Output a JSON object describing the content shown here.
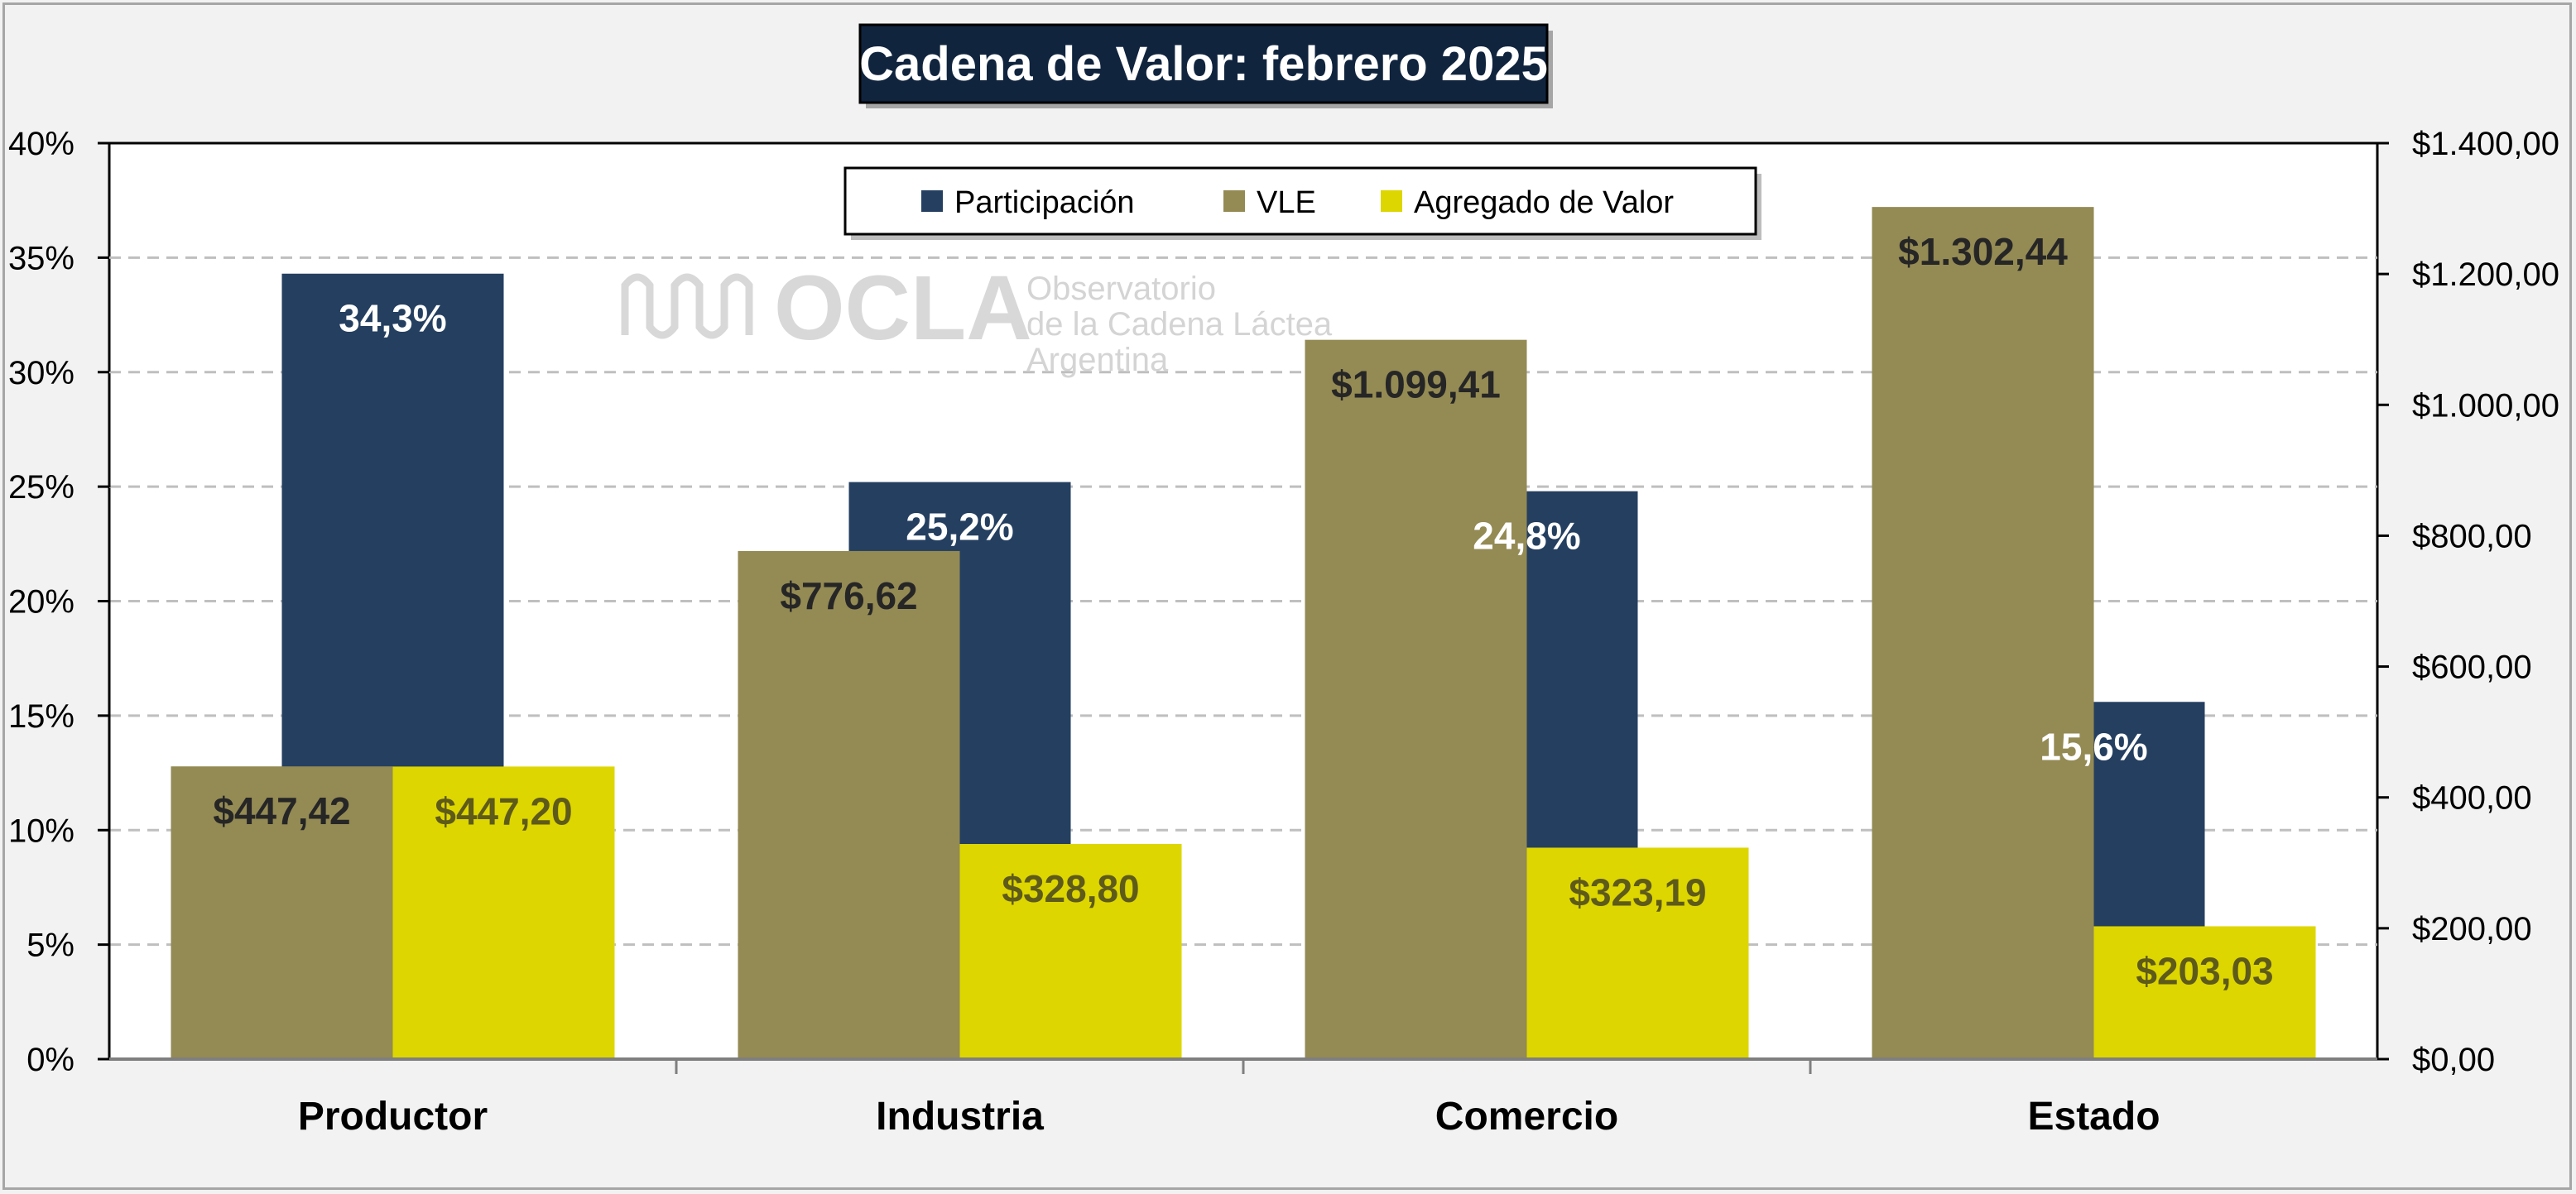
{
  "chart_data": {
    "type": "bar",
    "title": "Cadena de Valor: febrero 2025",
    "categories": [
      "Productor",
      "Industria",
      "Comercio",
      "Estado"
    ],
    "series": [
      {
        "name": "Participación",
        "axis": "left",
        "color": "#243f60",
        "values": [
          34.3,
          25.2,
          24.8,
          15.6
        ],
        "labels": [
          "34,3%",
          "25,2%",
          "24,8%",
          "15,6%"
        ],
        "label_color": "#ffffff"
      },
      {
        "name": "VLE",
        "axis": "right",
        "color": "#948a54",
        "values": [
          447.42,
          776.62,
          1099.41,
          1302.44
        ],
        "labels": [
          "$447,42",
          "$776,62",
          "$1.099,41",
          "$1.302,44"
        ],
        "label_color": "#262626"
      },
      {
        "name": "Agregado de Valor",
        "axis": "right",
        "color": "#ddd600",
        "values": [
          447.2,
          328.8,
          323.19,
          203.03
        ],
        "labels": [
          "$447,20",
          "$328,80",
          "$323,19",
          "$203,03"
        ],
        "label_color": "#5e5a1a"
      }
    ],
    "y_left": {
      "min": 0,
      "max": 40,
      "step": 5,
      "tick_labels": [
        "0%",
        "5%",
        "10%",
        "15%",
        "20%",
        "25%",
        "30%",
        "35%",
        "40%"
      ]
    },
    "y_right": {
      "min": 0,
      "max": 1400,
      "step": 200,
      "tick_labels": [
        "$0,00",
        "$200,00",
        "$400,00",
        "$600,00",
        "$800,00",
        "$1.000,00",
        "$1.200,00",
        "$1.400,00"
      ]
    },
    "grid": "horizontal dashed",
    "legend_position": "top-center"
  },
  "watermark": {
    "logo_text": "OCLA",
    "line1": "Observatorio",
    "line2": "de la Cadena Láctea",
    "line3": "Argentina"
  },
  "colors": {
    "title_background": "#10243e",
    "plot_background": "#ffffff",
    "page_background": "#f2f2f2",
    "gridline": "#bfbfbf"
  }
}
